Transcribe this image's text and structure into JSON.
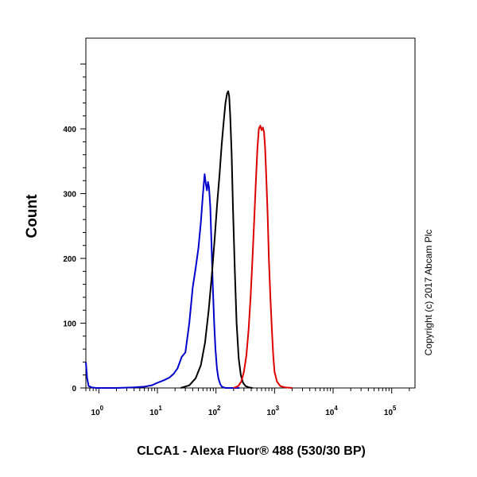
{
  "chart_data": {
    "type": "line",
    "title": "",
    "xlabel": "CLCA1 - Alexa Fluor® 488 (530/30 BP)",
    "ylabel": "Count",
    "x_scale": "log",
    "xlim": [
      0.6,
      250000
    ],
    "ylim": [
      0,
      540
    ],
    "y_ticks": [
      0,
      100,
      200,
      300,
      400
    ],
    "x_ticks": [
      1,
      10,
      100,
      1000,
      10000,
      100000
    ],
    "x_tick_bases": [
      "10",
      "10",
      "10",
      "10",
      "10",
      "10"
    ],
    "x_tick_exponents": [
      "0",
      "1",
      "2",
      "3",
      "4",
      "5"
    ],
    "grid": false,
    "legend": "none",
    "annotation": "Copyright (c) 2017 Abcam Plc",
    "series": [
      {
        "color": "#0000cc",
        "x": [
          0.6,
          0.63,
          0.67,
          0.75,
          0.9,
          1.2,
          2,
          4,
          6,
          8,
          10,
          13,
          16,
          19,
          22,
          26,
          30,
          35,
          40,
          45,
          50,
          55,
          60,
          64,
          67,
          70,
          73,
          76,
          80,
          84,
          88,
          93,
          98,
          104,
          110,
          118,
          126,
          135,
          145,
          160,
          180,
          250
        ],
        "y": [
          40,
          15,
          3,
          1,
          0,
          0,
          0,
          1,
          2,
          4,
          8,
          12,
          16,
          22,
          30,
          48,
          55,
          100,
          155,
          185,
          215,
          255,
          300,
          330,
          315,
          305,
          318,
          310,
          280,
          220,
          160,
          100,
          60,
          30,
          15,
          6,
          2,
          1,
          0,
          0,
          0,
          0
        ]
      },
      {
        "color": "#000000",
        "x": [
          25,
          35,
          45,
          55,
          65,
          75,
          85,
          95,
          105,
          115,
          125,
          135,
          145,
          155,
          162,
          168,
          175,
          185,
          195,
          210,
          225,
          245,
          265,
          290,
          320,
          360,
          420
        ],
        "y": [
          0,
          4,
          15,
          35,
          70,
          120,
          175,
          230,
          285,
          330,
          375,
          410,
          440,
          455,
          458,
          450,
          420,
          360,
          280,
          180,
          100,
          45,
          20,
          8,
          3,
          1,
          0
        ]
      },
      {
        "color": "#dd0000",
        "x": [
          200,
          240,
          270,
          300,
          330,
          360,
          390,
          420,
          450,
          480,
          510,
          540,
          570,
          600,
          630,
          660,
          690,
          720,
          760,
          800,
          850,
          900,
          950,
          1000,
          1100,
          1250,
          1500,
          2000
        ],
        "y": [
          0,
          3,
          10,
          25,
          50,
          90,
          140,
          200,
          260,
          320,
          370,
          400,
          405,
          398,
          402,
          395,
          370,
          330,
          270,
          200,
          140,
          90,
          50,
          25,
          10,
          3,
          1,
          0
        ]
      }
    ]
  }
}
